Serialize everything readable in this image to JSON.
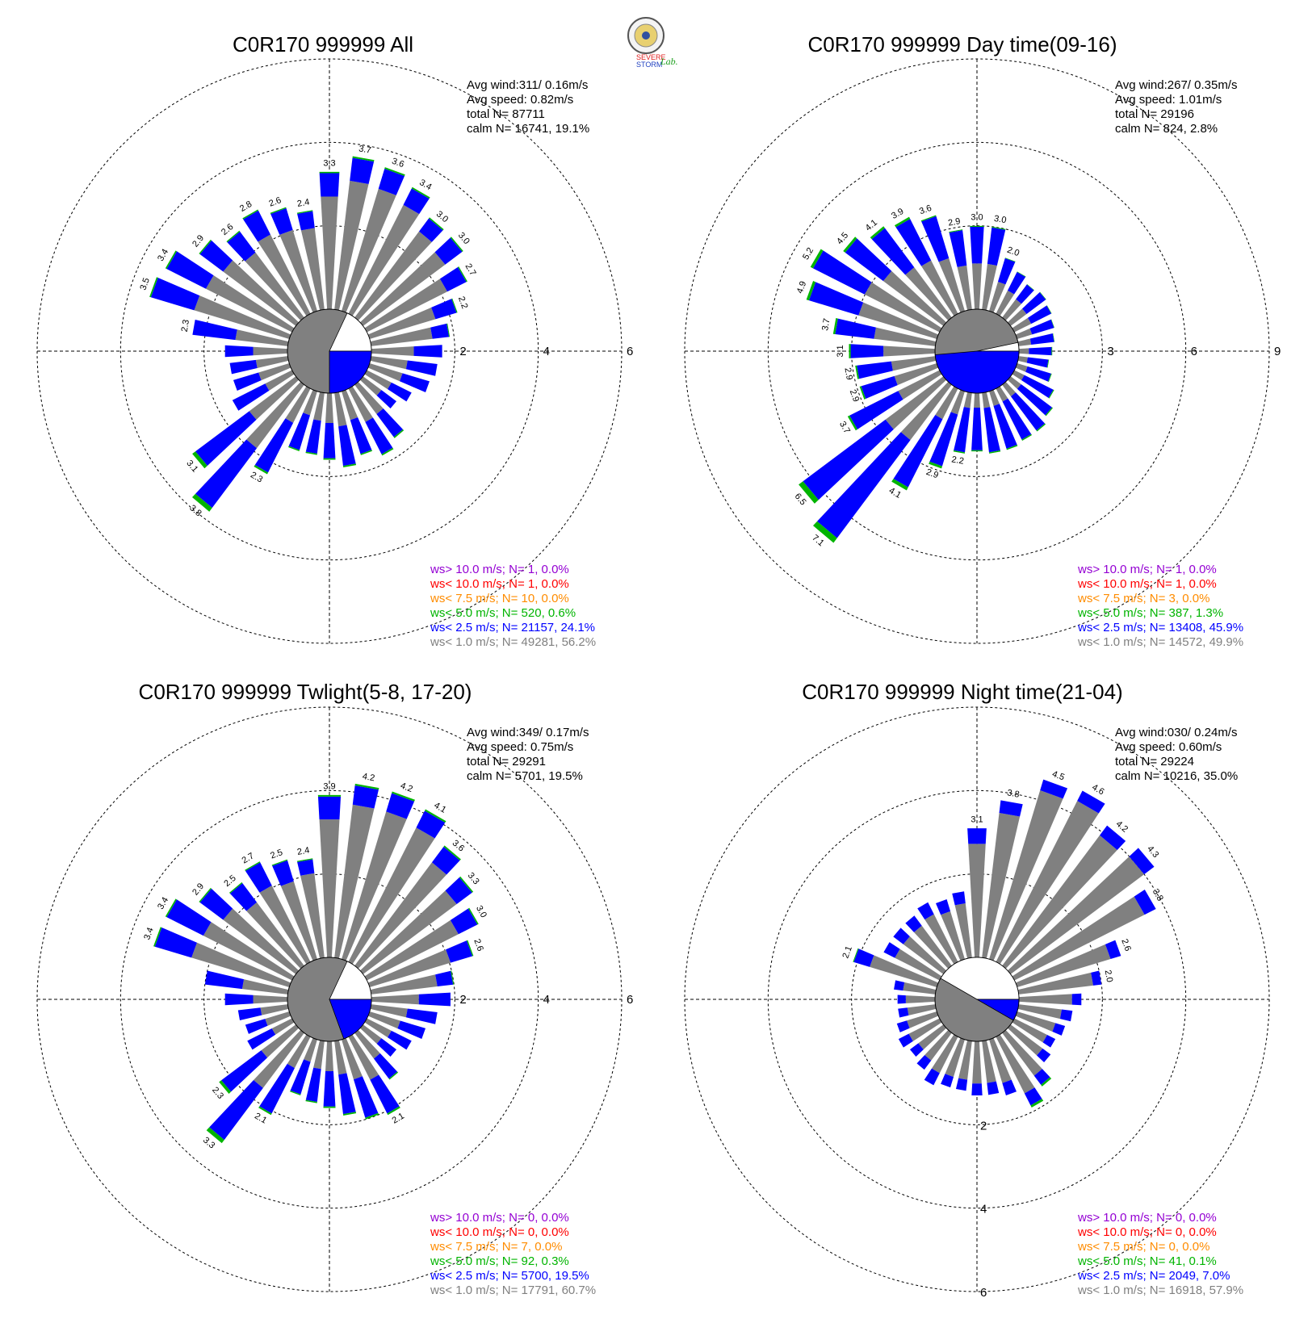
{
  "logo": {
    "text_s1": "SEVERE",
    "text_s2": "STORM",
    "text_lab": "Lab."
  },
  "colors": {
    "lt1": "#808080",
    "lt25": "#0000ff",
    "lt5": "#00b400",
    "lt75": "#ff8c00",
    "lt10": "#ff0000",
    "gt10": "#9400d3"
  },
  "legend_rows": [
    {
      "key": "gt10",
      "label": "ws> 10.0 m/s; N="
    },
    {
      "key": "lt10",
      "label": "ws< 10.0 m/s; N="
    },
    {
      "key": "lt75",
      "label": "ws<  7.5 m/s; N="
    },
    {
      "key": "lt5",
      "label": "ws<  5.0 m/s; N="
    },
    {
      "key": "lt25",
      "label": "ws<  2.5 m/s; N="
    },
    {
      "key": "lt1",
      "label": "ws<  1.0 m/s; N="
    }
  ],
  "chart_data": [
    {
      "type": "windrose",
      "title": "C0R170 999999 All",
      "info": [
        "Avg wind:311/ 0.16m/s",
        "Avg speed: 0.82m/s",
        "total N=       87711",
        "calm N=  16741,  19.1%"
      ],
      "ring_labels": [
        "2",
        "4",
        "6"
      ],
      "ring_max": 6,
      "calm_blue": [
        90,
        180
      ],
      "calm_white": [
        25,
        90
      ],
      "directions_deg": [
        0,
        10,
        20,
        30,
        40,
        50,
        60,
        70,
        80,
        90,
        100,
        110,
        120,
        130,
        140,
        150,
        160,
        170,
        180,
        190,
        200,
        210,
        220,
        230,
        240,
        250,
        260,
        270,
        280,
        290,
        300,
        310,
        320,
        330,
        340,
        350
      ],
      "totals": [
        3.3,
        3.7,
        3.6,
        3.4,
        3.0,
        3.0,
        2.7,
        2.2,
        1.9,
        1.7,
        1.6,
        1.5,
        1.2,
        1.0,
        1.6,
        1.8,
        1.6,
        1.8,
        1.6,
        1.5,
        1.5,
        2.3,
        3.8,
        3.1,
        1.6,
        1.4,
        1.4,
        1.5,
        2.3,
        3.5,
        3.4,
        2.9,
        2.6,
        2.8,
        2.6,
        2.4
      ],
      "gray_frac": [
        0.82,
        0.84,
        0.85,
        0.86,
        0.86,
        0.82,
        0.8,
        0.75,
        0.78,
        0.6,
        0.55,
        0.55,
        0.55,
        0.55,
        0.55,
        0.5,
        0.45,
        0.45,
        0.45,
        0.45,
        0.4,
        0.4,
        0.5,
        0.45,
        0.45,
        0.55,
        0.55,
        0.55,
        0.55,
        0.68,
        0.68,
        0.75,
        0.75,
        0.76,
        0.78,
        0.82
      ],
      "green_frac": [
        0.01,
        0.01,
        0.01,
        0.01,
        0.01,
        0.01,
        0.01,
        0.01,
        0.01,
        0.0,
        0.0,
        0.0,
        0.0,
        0.0,
        0.02,
        0.02,
        0.02,
        0.02,
        0.02,
        0.02,
        0.02,
        0.02,
        0.03,
        0.03,
        0.0,
        0.0,
        0.0,
        0.0,
        0.0,
        0.01,
        0.01,
        0.01,
        0.01,
        0.01,
        0.01,
        0.01
      ],
      "labels": [
        {
          "dir": 0,
          "text": "3.3"
        },
        {
          "dir": 10,
          "text": "3.7"
        },
        {
          "dir": 20,
          "text": "3.6"
        },
        {
          "dir": 30,
          "text": "3.4"
        },
        {
          "dir": 40,
          "text": "3.0"
        },
        {
          "dir": 50,
          "text": "3.0"
        },
        {
          "dir": 60,
          "text": "2.7"
        },
        {
          "dir": 70,
          "text": "2.2"
        },
        {
          "dir": 220,
          "text": "3.8"
        },
        {
          "dir": 230,
          "text": "3.1"
        },
        {
          "dir": 210,
          "text": "2.3"
        },
        {
          "dir": 280,
          "text": "2.3"
        },
        {
          "dir": 290,
          "text": "3.5"
        },
        {
          "dir": 300,
          "text": "3.4"
        },
        {
          "dir": 310,
          "text": "2.9"
        },
        {
          "dir": 320,
          "text": "2.6"
        },
        {
          "dir": 330,
          "text": "2.8"
        },
        {
          "dir": 340,
          "text": "2.6"
        },
        {
          "dir": 350,
          "text": "2.4"
        }
      ],
      "legend_values": [
        "   1,  0.0%",
        "   1,  0.0%",
        "  10,  0.0%",
        " 520,  0.6%",
        "21157, 24.1%",
        "49281, 56.2%"
      ]
    },
    {
      "type": "windrose",
      "title": "C0R170 999999 Day time(09-16)",
      "info": [
        "Avg wind:267/ 0.35m/s",
        "Avg speed: 1.01m/s",
        "total N=       29196",
        "calm N=   824,   2.8%"
      ],
      "ring_labels": [
        "3",
        "6",
        "9"
      ],
      "ring_max": 9,
      "calm_blue": [
        90,
        265
      ],
      "calm_white": [
        78,
        90
      ],
      "directions_deg": [
        0,
        10,
        20,
        30,
        40,
        50,
        60,
        70,
        80,
        90,
        100,
        110,
        120,
        130,
        140,
        150,
        160,
        170,
        180,
        190,
        200,
        210,
        220,
        230,
        240,
        250,
        260,
        270,
        280,
        290,
        300,
        310,
        320,
        330,
        340,
        350
      ],
      "totals": [
        3.0,
        3.0,
        2.0,
        1.7,
        1.5,
        1.6,
        1.5,
        1.4,
        1.3,
        1.2,
        1.1,
        1.3,
        1.6,
        1.9,
        2.1,
        2.1,
        2.2,
        2.2,
        2.1,
        2.2,
        2.9,
        4.1,
        7.1,
        6.5,
        3.7,
        2.9,
        2.9,
        3.1,
        3.7,
        4.9,
        5.2,
        4.5,
        4.1,
        3.9,
        3.6,
        2.9
      ],
      "gray_frac": [
        0.55,
        0.55,
        0.55,
        0.55,
        0.55,
        0.45,
        0.45,
        0.4,
        0.35,
        0.3,
        0.3,
        0.3,
        0.25,
        0.25,
        0.25,
        0.25,
        0.25,
        0.25,
        0.25,
        0.25,
        0.3,
        0.3,
        0.35,
        0.4,
        0.45,
        0.55,
        0.55,
        0.6,
        0.6,
        0.6,
        0.58,
        0.6,
        0.55,
        0.55,
        0.55,
        0.55
      ],
      "green_frac": [
        0.01,
        0.01,
        0.01,
        0.01,
        0.01,
        0.01,
        0.01,
        0.01,
        0.01,
        0.02,
        0.02,
        0.02,
        0.02,
        0.02,
        0.02,
        0.02,
        0.02,
        0.02,
        0.02,
        0.02,
        0.03,
        0.03,
        0.03,
        0.03,
        0.02,
        0.02,
        0.02,
        0.02,
        0.02,
        0.02,
        0.02,
        0.02,
        0.02,
        0.02,
        0.01,
        0.01
      ],
      "labels": [
        {
          "dir": 0,
          "text": "3.0"
        },
        {
          "dir": 10,
          "text": "3.0"
        },
        {
          "dir": 20,
          "text": "2.0"
        },
        {
          "dir": 200,
          "text": "2.9"
        },
        {
          "dir": 190,
          "text": "2.2"
        },
        {
          "dir": 210,
          "text": "4.1"
        },
        {
          "dir": 220,
          "text": "7.1"
        },
        {
          "dir": 230,
          "text": "6.5"
        },
        {
          "dir": 240,
          "text": "3.7"
        },
        {
          "dir": 250,
          "text": "2.9"
        },
        {
          "dir": 260,
          "text": "2.9"
        },
        {
          "dir": 270,
          "text": "3.1"
        },
        {
          "dir": 280,
          "text": "3.7"
        },
        {
          "dir": 290,
          "text": "4.9"
        },
        {
          "dir": 300,
          "text": "5.2"
        },
        {
          "dir": 310,
          "text": "4.5"
        },
        {
          "dir": 320,
          "text": "4.1"
        },
        {
          "dir": 330,
          "text": "3.9"
        },
        {
          "dir": 340,
          "text": "3.6"
        },
        {
          "dir": 350,
          "text": "2.9"
        }
      ],
      "legend_values": [
        "   1,  0.0%",
        "   1,  0.0%",
        "   3,  0.0%",
        " 387,  1.3%",
        "13408, 45.9%",
        "14572, 49.9%"
      ]
    },
    {
      "type": "windrose",
      "title": "C0R170 999999 Twlight(5-8, 17-20)",
      "info": [
        "Avg wind:349/ 0.17m/s",
        "Avg speed: 0.75m/s",
        "total N=       29291",
        "calm N=   5701,  19.5%"
      ],
      "ring_labels": [
        "2",
        "4",
        "6"
      ],
      "ring_max": 6,
      "calm_blue": [
        90,
        160
      ],
      "calm_white": [
        25,
        90
      ],
      "directions_deg": [
        0,
        10,
        20,
        30,
        40,
        50,
        60,
        70,
        80,
        90,
        100,
        110,
        120,
        130,
        140,
        150,
        160,
        170,
        180,
        190,
        200,
        210,
        220,
        230,
        240,
        250,
        260,
        270,
        280,
        290,
        300,
        310,
        320,
        330,
        340,
        350
      ],
      "totals": [
        3.9,
        4.2,
        4.2,
        4.1,
        3.6,
        3.3,
        3.0,
        2.6,
        2.0,
        1.9,
        1.6,
        1.4,
        1.2,
        1.0,
        1.4,
        2.1,
        2.0,
        1.8,
        1.6,
        1.5,
        1.4,
        2.1,
        3.3,
        2.3,
        1.2,
        1.1,
        1.2,
        1.5,
        2.0,
        3.4,
        3.4,
        2.9,
        2.5,
        2.7,
        2.5,
        2.4
      ],
      "gray_frac": [
        0.85,
        0.88,
        0.88,
        0.88,
        0.86,
        0.85,
        0.82,
        0.78,
        0.8,
        0.6,
        0.55,
        0.55,
        0.55,
        0.55,
        0.55,
        0.55,
        0.5,
        0.45,
        0.45,
        0.45,
        0.4,
        0.4,
        0.5,
        0.45,
        0.45,
        0.55,
        0.55,
        0.55,
        0.55,
        0.72,
        0.7,
        0.75,
        0.76,
        0.76,
        0.78,
        0.85
      ],
      "green_frac": [
        0.01,
        0.01,
        0.01,
        0.01,
        0.01,
        0.01,
        0.01,
        0.01,
        0.01,
        0.0,
        0.0,
        0.0,
        0.0,
        0.0,
        0.02,
        0.02,
        0.02,
        0.02,
        0.02,
        0.02,
        0.02,
        0.02,
        0.03,
        0.03,
        0.0,
        0.0,
        0.0,
        0.0,
        0.0,
        0.01,
        0.01,
        0.01,
        0.01,
        0.01,
        0.01,
        0.01
      ],
      "labels": [
        {
          "dir": 0,
          "text": "3.9"
        },
        {
          "dir": 10,
          "text": "4.2"
        },
        {
          "dir": 20,
          "text": "4.2"
        },
        {
          "dir": 30,
          "text": "4.1"
        },
        {
          "dir": 40,
          "text": "3.6"
        },
        {
          "dir": 50,
          "text": "3.3"
        },
        {
          "dir": 60,
          "text": "3.0"
        },
        {
          "dir": 70,
          "text": "2.6"
        },
        {
          "dir": 150,
          "text": "2.1"
        },
        {
          "dir": 210,
          "text": "2.1"
        },
        {
          "dir": 220,
          "text": "3.3"
        },
        {
          "dir": 230,
          "text": "2.3"
        },
        {
          "dir": 290,
          "text": "3.4"
        },
        {
          "dir": 300,
          "text": "3.4"
        },
        {
          "dir": 310,
          "text": "2.9"
        },
        {
          "dir": 320,
          "text": "2.5"
        },
        {
          "dir": 330,
          "text": "2.7"
        },
        {
          "dir": 340,
          "text": "2.5"
        },
        {
          "dir": 350,
          "text": "2.4"
        }
      ],
      "legend_values": [
        "   0,  0.0%",
        "   0,  0.0%",
        "   7,  0.0%",
        "  92,  0.3%",
        " 5700, 19.5%",
        "17791, 60.7%"
      ]
    },
    {
      "type": "windrose",
      "title": "C0R170 999999 Night time(21-04)",
      "info": [
        "Avg wind:030/ 0.24m/s",
        "Avg speed: 0.60m/s",
        "total N=       29224",
        "calm N=  10216,  35.0%"
      ],
      "ring_labels": [
        "2",
        "4",
        "6"
      ],
      "ring_max": 6,
      "calm_blue": [
        90,
        120
      ],
      "calm_white": [
        300,
        450
      ],
      "directions_deg": [
        0,
        10,
        20,
        30,
        40,
        50,
        60,
        70,
        80,
        90,
        100,
        110,
        120,
        130,
        140,
        150,
        160,
        170,
        180,
        190,
        200,
        210,
        220,
        230,
        240,
        250,
        260,
        270,
        280,
        290,
        300,
        310,
        320,
        330,
        340,
        350
      ],
      "totals": [
        3.1,
        3.8,
        4.5,
        4.6,
        4.2,
        4.3,
        3.8,
        2.6,
        2.0,
        1.5,
        1.3,
        1.2,
        1.1,
        1.2,
        1.6,
        1.9,
        1.4,
        1.3,
        1.3,
        1.2,
        1.2,
        1.3,
        1.1,
        1.0,
        1.1,
        1.0,
        0.9,
        0.9,
        1.0,
        2.1,
        1.5,
        1.5,
        1.5,
        1.6,
        1.5,
        1.6
      ],
      "gray_frac": [
        0.88,
        0.92,
        0.94,
        0.94,
        0.93,
        0.93,
        0.92,
        0.9,
        0.9,
        0.85,
        0.8,
        0.8,
        0.8,
        0.8,
        0.8,
        0.8,
        0.78,
        0.78,
        0.78,
        0.78,
        0.78,
        0.75,
        0.75,
        0.75,
        0.75,
        0.75,
        0.75,
        0.78,
        0.78,
        0.8,
        0.8,
        0.8,
        0.8,
        0.8,
        0.8,
        0.82
      ],
      "green_frac": [
        0.0,
        0.0,
        0.0,
        0.0,
        0.0,
        0.0,
        0.0,
        0.0,
        0.0,
        0.0,
        0.0,
        0.0,
        0.0,
        0.0,
        0.03,
        0.03,
        0.0,
        0.0,
        0.0,
        0.0,
        0.0,
        0.0,
        0.0,
        0.0,
        0.0,
        0.0,
        0.0,
        0.0,
        0.0,
        0.01,
        0.0,
        0.0,
        0.0,
        0.0,
        0.0,
        0.0
      ],
      "labels": [
        {
          "dir": 0,
          "text": "3.1"
        },
        {
          "dir": 10,
          "text": "3.8"
        },
        {
          "dir": 20,
          "text": "4.5"
        },
        {
          "dir": 30,
          "text": "4.6"
        },
        {
          "dir": 40,
          "text": "4.2"
        },
        {
          "dir": 50,
          "text": "4.3"
        },
        {
          "dir": 60,
          "text": "3.8"
        },
        {
          "dir": 70,
          "text": "2.6"
        },
        {
          "dir": 80,
          "text": "2.0"
        },
        {
          "dir": 290,
          "text": "2.1"
        }
      ],
      "legend_values": [
        "   0,  0.0%",
        "   0,  0.0%",
        "   0,  0.0%",
        "  41,  0.1%",
        " 2049,  7.0%",
        "16918, 57.9%"
      ]
    }
  ]
}
